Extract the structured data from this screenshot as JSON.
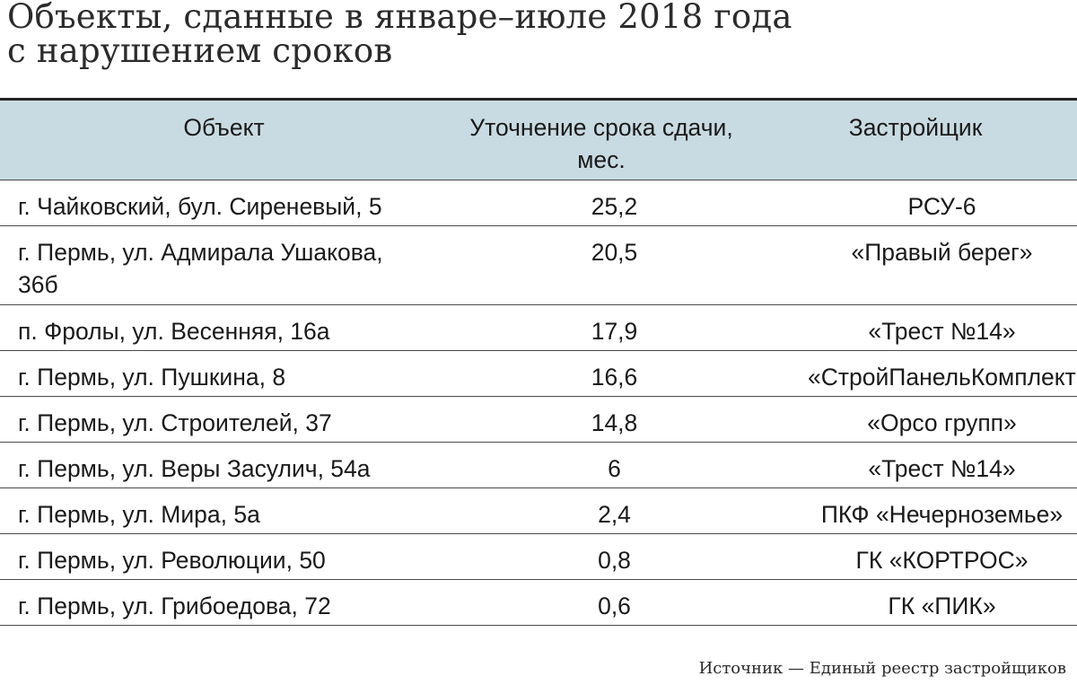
{
  "title": {
    "line1": "Объекты, сданные в январе–июле 2018 года",
    "line2": "с нарушением сроков"
  },
  "table": {
    "headers": {
      "object": "Объект",
      "delay_line1": "Уточнение срока сдачи,",
      "delay_line2": "мес.",
      "developer": "Застройщик"
    },
    "rows": [
      {
        "object": "г. Чайковский, бул. Сиреневый, 5",
        "delay": "25,2",
        "developer": "РСУ-6"
      },
      {
        "object": "г. Пермь, ул. Адмирала Ушакова,",
        "object_line2": "36б",
        "delay": "20,5",
        "developer": "«Правый берег»"
      },
      {
        "object": "п. Фролы, ул. Весенняя, 16а",
        "delay": "17,9",
        "developer": "«Трест №14»"
      },
      {
        "object": "г. Пермь, ул. Пушкина, 8",
        "delay": "16,6",
        "developer": "«СтройПанельКомплект»"
      },
      {
        "object": "г. Пермь, ул. Строителей, 37",
        "delay": "14,8",
        "developer": "«Орсо групп»"
      },
      {
        "object": "г. Пермь, ул. Веры Засулич, 54а",
        "delay": "6",
        "developer": "«Трест №14»"
      },
      {
        "object": "г. Пермь, ул. Мира, 5а",
        "delay": "2,4",
        "developer": "ПКФ «Нечерноземье»"
      },
      {
        "object": "г. Пермь, ул. Революции, 50",
        "delay": "0,8",
        "developer": "ГК «КОРТРОС»"
      },
      {
        "object": "г. Пермь, ул. Грибоедова, 72",
        "delay": "0,6",
        "developer": "ГК «ПИК»"
      }
    ],
    "header_color": "#c9dbe2"
  },
  "source": "Источник — Единый реестр застройщиков"
}
